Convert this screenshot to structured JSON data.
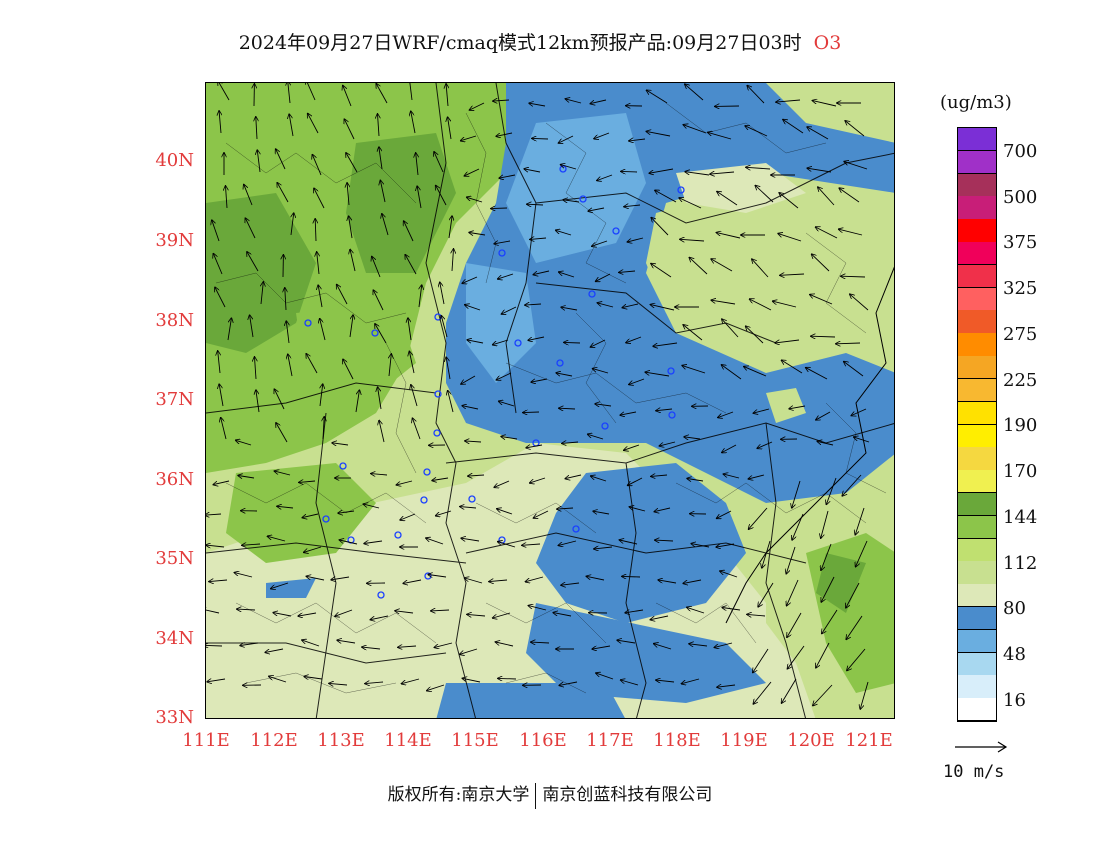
{
  "title": {
    "main": "2024年09月27日WRF/cmaq模式12km预报产品:09月27日03时",
    "pollutant": "O3"
  },
  "axes": {
    "lat_labels": [
      "40N",
      "39N",
      "38N",
      "37N",
      "36N",
      "35N",
      "34N",
      "33N"
    ],
    "lon_labels": [
      "111E",
      "112E",
      "113E",
      "114E",
      "115E",
      "116E",
      "117E",
      "118E",
      "119E",
      "120E",
      "121E"
    ],
    "label_color": "#e23b3b"
  },
  "legend": {
    "unit": "(ug/m3)",
    "labels": [
      "700",
      "500",
      "375",
      "325",
      "275",
      "225",
      "190",
      "170",
      "144",
      "112",
      "80",
      "48",
      "16"
    ],
    "colors_top_to_bottom": [
      "#7b2fd6",
      "#a030c8",
      "#a6305a",
      "#c81e78",
      "#ff0000",
      "#f0005a",
      "#f0304a",
      "#ff6060",
      "#f05a28",
      "#ff8c00",
      "#f5a623",
      "#f8b830",
      "#ffe100",
      "#ffee00",
      "#f5d840",
      "#f0f050",
      "#6aa83a",
      "#8cc54a",
      "#c0e070",
      "#c8e090",
      "#dde8b8",
      "#4a8ccc",
      "#6aaee0",
      "#a8d8f0",
      "#d8eefa",
      "#ffffff"
    ]
  },
  "wind_reference": {
    "label": "10 m/s"
  },
  "copyright": {
    "left": "版权所有:南京大学",
    "right": "南京创蓝科技有限公司"
  },
  "palette": {
    "green_light": "#dde8b8",
    "green_mid": "#c8e090",
    "green": "#8cc54a",
    "green_dark": "#6aa83a",
    "blue": "#4a8ccc",
    "blue_light": "#6aaee0"
  }
}
